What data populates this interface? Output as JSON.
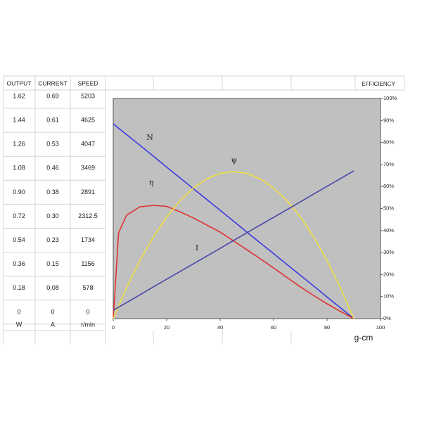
{
  "table": {
    "header": [
      "OUTPUT",
      "CURRENT",
      "SPEED"
    ],
    "rows": [
      [
        "1.62",
        "0.69",
        "5203"
      ],
      [
        "1.44",
        "0.61",
        "4625"
      ],
      [
        "1.26",
        "0.53",
        "4047"
      ],
      [
        "1.08",
        "0.46",
        "3469"
      ],
      [
        "0.90",
        "0.38",
        "2891"
      ],
      [
        "0.72",
        "0.30",
        "2312.5"
      ],
      [
        "0.54",
        "0.23",
        "1734"
      ],
      [
        "0.36",
        "0.15",
        "1156"
      ],
      [
        "0.18",
        "0.08",
        "578"
      ],
      [
        "0",
        "0",
        "0"
      ]
    ],
    "units": [
      "W",
      "A",
      "r/min"
    ]
  },
  "chart_data": {
    "type": "line",
    "y_axis_title": "EFFICIENCY",
    "x_axis_title": "g-cm",
    "x": [
      0,
      2,
      5,
      10,
      15,
      20,
      25,
      30,
      35,
      40,
      45,
      50,
      55,
      60,
      65,
      70,
      75,
      80,
      85,
      90
    ],
    "series": [
      {
        "name": "N",
        "color": "#3b3be0",
        "values": [
          88.5,
          86.5,
          83.6,
          78.7,
          73.8,
          68.8,
          63.9,
          59.0,
          54.1,
          49.2,
          44.3,
          39.3,
          34.4,
          29.5,
          24.6,
          19.7,
          14.8,
          9.8,
          4.9,
          0
        ]
      },
      {
        "name": "η",
        "color": "#e03030",
        "values": [
          0,
          39,
          47,
          50.8,
          51.4,
          51,
          48.5,
          45.7,
          42.5,
          39.3,
          35.3,
          31.3,
          27.2,
          23,
          18.7,
          14.4,
          10.5,
          6.7,
          3.3,
          0
        ]
      },
      {
        "name": "ψ",
        "color": "#eee040",
        "values": [
          0,
          5.8,
          14.0,
          26.4,
          37.1,
          46.2,
          53.6,
          59.4,
          63.5,
          66.0,
          66.8,
          66.0,
          63.5,
          59.4,
          53.6,
          46.2,
          37.1,
          26.4,
          14.0,
          0
        ]
      },
      {
        "name": "I",
        "color": "#4848a8",
        "values": [
          3.8,
          5.2,
          7.3,
          10.8,
          14.4,
          17.9,
          21.4,
          24.9,
          28.4,
          31.9,
          35.5,
          39.0,
          42.5,
          46.0,
          49.5,
          53.0,
          56.6,
          60.1,
          63.6,
          67.1
        ]
      }
    ],
    "xlim": [
      0,
      100
    ],
    "xticks": [
      0,
      20,
      40,
      60,
      80,
      100
    ],
    "ylim": [
      0,
      100
    ],
    "yticks": [
      {
        "value": 0,
        "label": "0%"
      },
      {
        "value": 10,
        "label": "10%"
      },
      {
        "value": 20,
        "label": "20%"
      },
      {
        "value": 30,
        "label": "30%"
      },
      {
        "value": 40,
        "label": "40%"
      },
      {
        "value": 50,
        "label": "50%"
      },
      {
        "value": 60,
        "label": "60%"
      },
      {
        "value": 70,
        "label": "70%"
      },
      {
        "value": 80,
        "label": "80%"
      },
      {
        "value": 90,
        "label": "90%"
      },
      {
        "value": 100,
        "label": "100%"
      }
    ],
    "background": "#c0c0c0"
  }
}
